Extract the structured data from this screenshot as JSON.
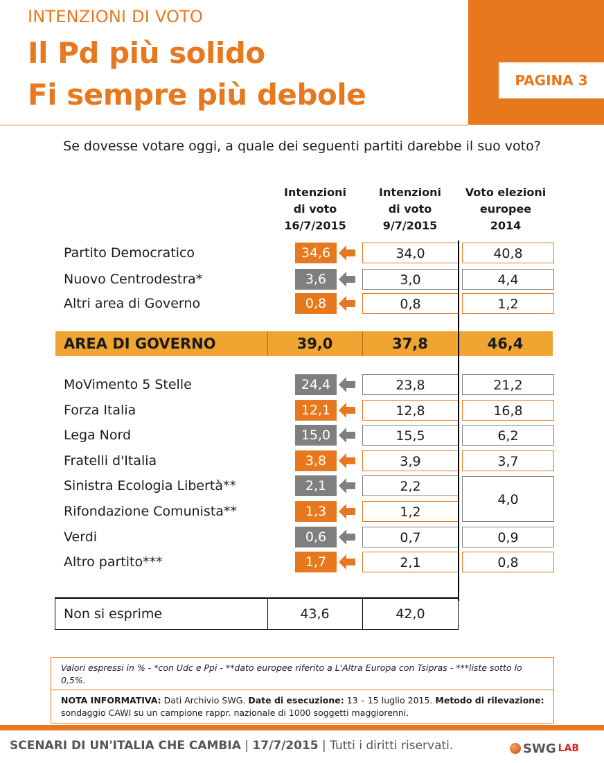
{
  "header": {
    "kicker": "INTENZIONI DI VOTO",
    "headline_1": "Il Pd più solido",
    "headline_2": "Fi sempre più debole",
    "page_tag": "PAGINA 3",
    "accent_color": "#e8781e"
  },
  "question": "Se dovesse votare oggi, a quale dei seguenti partiti darebbe il suo voto?",
  "chart_data": {
    "type": "table",
    "columns": [
      "Intenzioni\ndi voto\n16/7/2015",
      "Intenzioni\ndi voto\n9/7/2015",
      "Voto elezioni\neuropee\n2014"
    ],
    "rows_top": [
      {
        "party": "Partito Democratico",
        "cur": "34,6",
        "prev": "34,0",
        "eu": "40,8",
        "trend": "up"
      },
      {
        "party": "Nuovo Centrodestra*",
        "cur": "3,6",
        "prev": "3,0",
        "eu": "4,4",
        "trend": "up"
      },
      {
        "party": "Altri area di Governo",
        "cur": "0,8",
        "prev": "0,8",
        "eu": "1,2",
        "trend": "same"
      }
    ],
    "area_governo": {
      "label": "AREA DI GOVERNO",
      "cur": "39,0",
      "prev": "37,8",
      "eu": "46,4"
    },
    "rows_bottom": [
      {
        "party": "MoVimento 5 Stelle",
        "cur": "24,4",
        "prev": "23,8",
        "eu": "21,2",
        "trend": "up"
      },
      {
        "party": "Forza Italia",
        "cur": "12,1",
        "prev": "12,8",
        "eu": "16,8",
        "trend": "down"
      },
      {
        "party": "Lega Nord",
        "cur": "15,0",
        "prev": "15,5",
        "eu": "6,2",
        "trend": "down"
      },
      {
        "party": "Fratelli d'Italia",
        "cur": "3,8",
        "prev": "3,9",
        "eu": "3,7",
        "trend": "down"
      },
      {
        "party": "Sinistra Ecologia Libertà**",
        "cur": "2,1",
        "prev": "2,2",
        "eu": "4,0",
        "trend": "down"
      },
      {
        "party": "Rifondazione Comunista**",
        "cur": "1,3",
        "prev": "1,2",
        "eu": "",
        "trend": "up"
      },
      {
        "party": "Verdi",
        "cur": "0,6",
        "prev": "0,7",
        "eu": "0,9",
        "trend": "down"
      },
      {
        "party": "Altro partito***",
        "cur": "1,7",
        "prev": "2,1",
        "eu": "0,8",
        "trend": "down"
      }
    ],
    "non_si_esprime": {
      "label": "Non si esprime",
      "cur": "43,6",
      "prev": "42,0"
    }
  },
  "notes": {
    "note1": "Valori espressi in % - *con Udc e Ppi  - **dato europee riferito a L'Altra Europa con Tsipras - ***liste sotto lo 0,5%.",
    "note2_bold_1": "NOTA INFORMATIVA:",
    "note2_text_1": " Dati Archivio SWG. ",
    "note2_bold_2": "Date di esecuzione:",
    "note2_text_2": " 13 – 15 luglio 2015. ",
    "note2_bold_3": "Metodo di rilevazione:",
    "note2_text_3": " sondaggio CAWI su un campione rappr. nazionale di 1000 soggetti maggiorenni."
  },
  "footer": {
    "series": "SCENARI DI UN'ITALIA CHE CAMBIA",
    "sep1": " | ",
    "date": "17/7/2015",
    "sep2": " | ",
    "rights": "Tutti i diritti riservati.",
    "logo_main": "SWG",
    "logo_sub": "LAB"
  }
}
